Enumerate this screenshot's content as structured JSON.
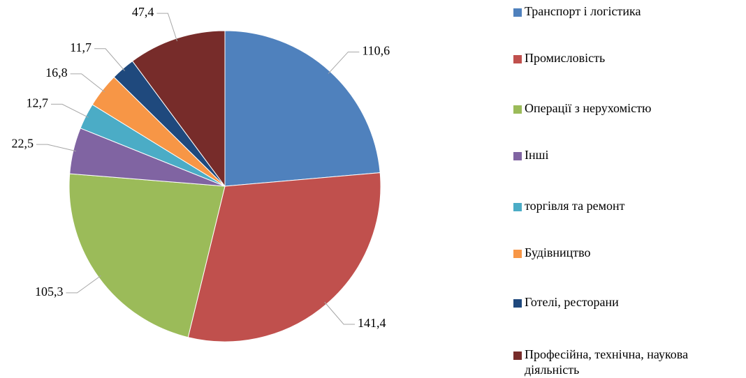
{
  "chart_data": {
    "type": "pie",
    "categories": [
      "Транспорт і логістика",
      "Промисловість",
      "Операції з нерухомістю",
      "Інші",
      "торгівля та ремонт",
      "Будівництво",
      "Готелі, ресторани",
      "Професійна, технічна, наукова діяльність"
    ],
    "values": [
      110.6,
      141.4,
      105.3,
      22.5,
      12.7,
      16.8,
      11.7,
      47.4
    ],
    "value_labels": [
      "110,6",
      "141,4",
      "105,3",
      "22,5",
      "12,7",
      "16,8",
      "11,7",
      "47,4"
    ],
    "colors": [
      "#4f81bd",
      "#c0504d",
      "#9bbb59",
      "#8064a2",
      "#4bacc6",
      "#f79646",
      "#1f497d",
      "#772c2a"
    ],
    "legend": "right"
  }
}
